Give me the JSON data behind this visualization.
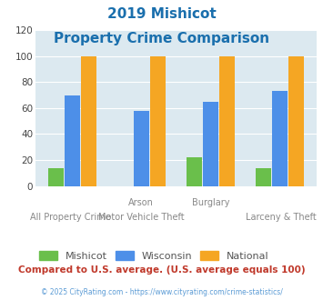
{
  "title_line1": "2019 Mishicot",
  "title_line2": "Property Crime Comparison",
  "title_color": "#1a6fad",
  "top_labels": [
    "",
    "Arson",
    "Burglary",
    ""
  ],
  "bottom_labels": [
    "All Property Crime",
    "Motor Vehicle Theft",
    "",
    "Larceny & Theft"
  ],
  "mishicot": [
    14,
    0,
    22,
    14
  ],
  "wisconsin": [
    70,
    58,
    65,
    73
  ],
  "national": [
    100,
    100,
    100,
    100
  ],
  "mishicot_color": "#6abf4b",
  "wisconsin_color": "#4d8fe8",
  "national_color": "#f5a623",
  "ylim": [
    0,
    120
  ],
  "yticks": [
    0,
    20,
    40,
    60,
    80,
    100,
    120
  ],
  "plot_bg": "#dce9f0",
  "footer_text": "Compared to U.S. average. (U.S. average equals 100)",
  "footer_color": "#c0392b",
  "credit_text": "© 2025 CityRating.com - https://www.cityrating.com/crime-statistics/",
  "credit_color": "#5b9bd5",
  "legend_labels": [
    "Mishicot",
    "Wisconsin",
    "National"
  ],
  "legend_text_color": "#555555"
}
